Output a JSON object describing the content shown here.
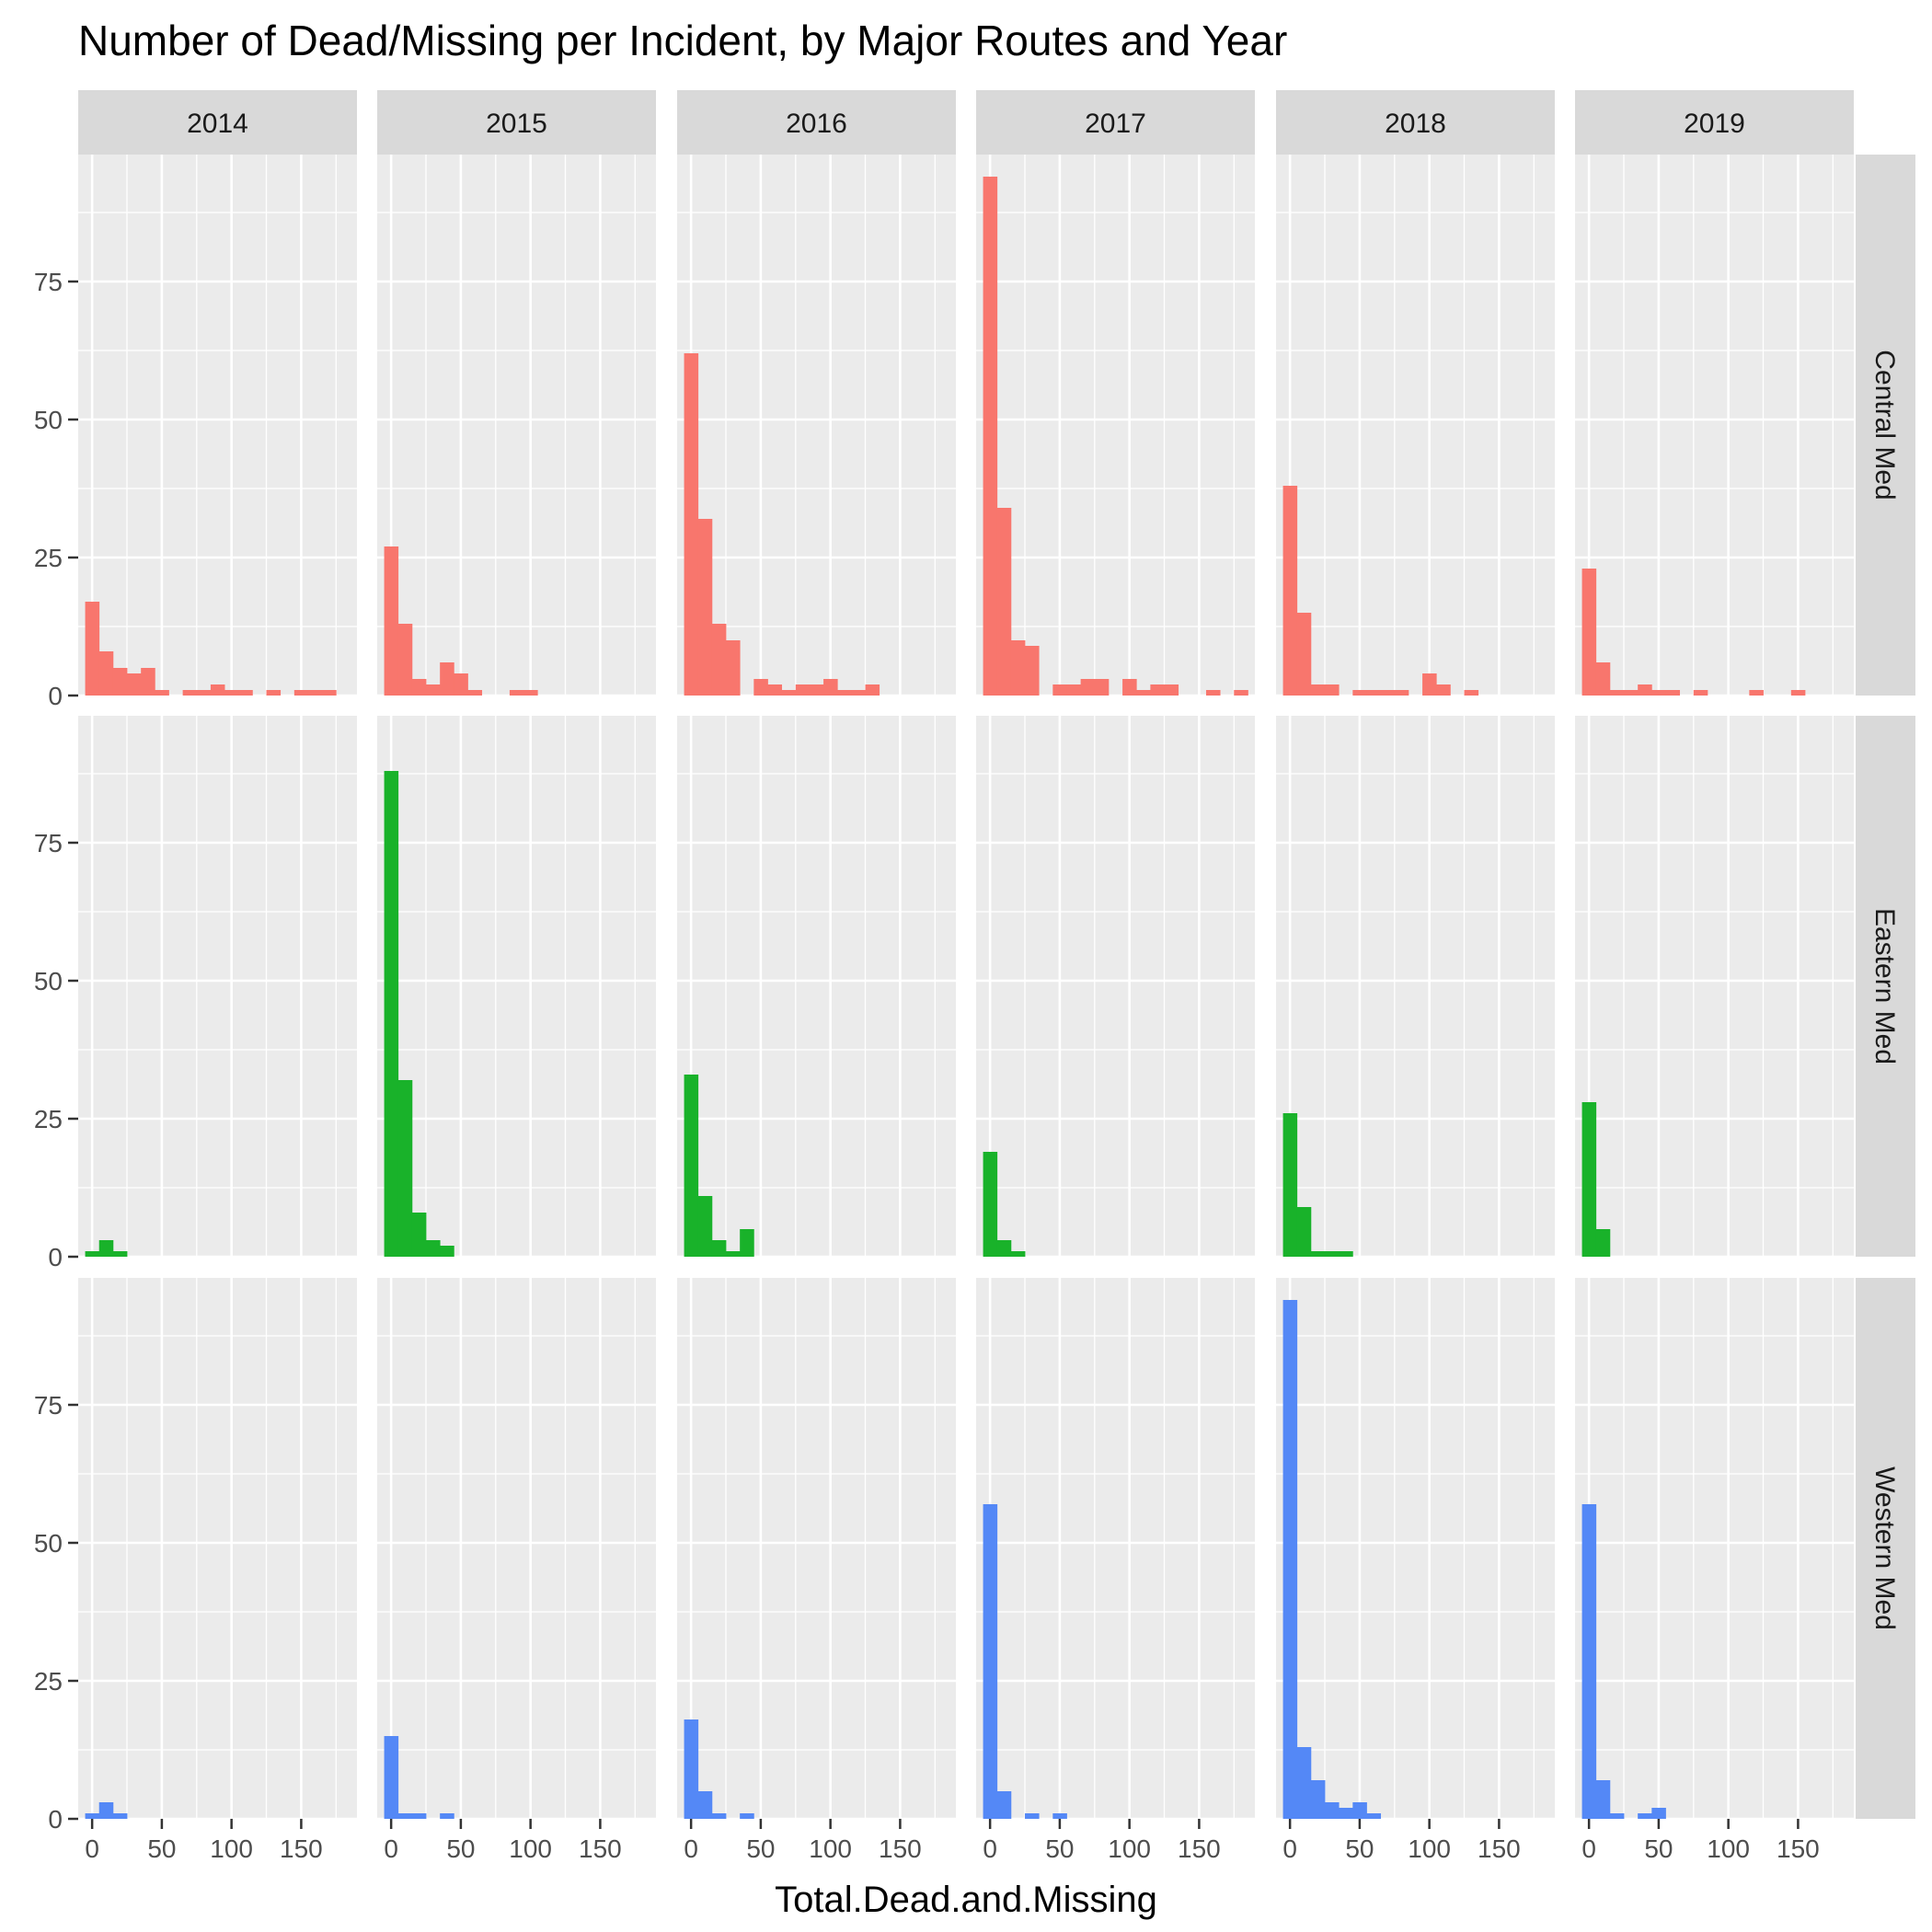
{
  "chart_data": {
    "type": "bar",
    "title": "Number of Dead/Missing per Incident, by Major Routes and Year",
    "xlabel": "Total.Dead.and.Missing",
    "ylabel": "",
    "xlim": [
      -10,
      190
    ],
    "ylim": [
      0,
      98
    ],
    "x_ticks": [
      0,
      50,
      100,
      150
    ],
    "x_tick_labels": [
      "0",
      "50",
      "100",
      "150"
    ],
    "y_ticks": [
      0,
      25,
      50,
      75
    ],
    "y_tick_labels": [
      "0",
      "25",
      "50",
      "75"
    ],
    "bin_width": 10,
    "bin_starts": [
      -5,
      5,
      15,
      25,
      35,
      45,
      55,
      65,
      75,
      85,
      95,
      105,
      115,
      125,
      135,
      145,
      155,
      165,
      175
    ],
    "columns": [
      "2014",
      "2015",
      "2016",
      "2017",
      "2018",
      "2019"
    ],
    "rows": [
      {
        "name": "Central Med",
        "color": "#F8766D",
        "values": {
          "2014": [
            17,
            8,
            5,
            4,
            5,
            1,
            0,
            1,
            1,
            2,
            1,
            1,
            0,
            1,
            0,
            1,
            1,
            1,
            0
          ],
          "2015": [
            27,
            13,
            3,
            2,
            6,
            4,
            1,
            0,
            0,
            1,
            1,
            0,
            0,
            0,
            0,
            0,
            0,
            0,
            0
          ],
          "2016": [
            62,
            32,
            13,
            10,
            0,
            3,
            2,
            1,
            2,
            2,
            3,
            1,
            1,
            2,
            0,
            0,
            0,
            0,
            0
          ],
          "2017": [
            94,
            34,
            10,
            9,
            0,
            2,
            2,
            3,
            3,
            0,
            3,
            1,
            2,
            2,
            0,
            0,
            1,
            0,
            1
          ],
          "2018": [
            38,
            15,
            2,
            2,
            0,
            1,
            1,
            1,
            1,
            0,
            4,
            2,
            0,
            1,
            0,
            0,
            0,
            0,
            0
          ],
          "2019": [
            23,
            6,
            1,
            1,
            2,
            1,
            1,
            0,
            1,
            0,
            0,
            0,
            1,
            0,
            0,
            1,
            0,
            0,
            0
          ]
        }
      },
      {
        "name": "Eastern Med",
        "color": "#19B22A",
        "values": {
          "2014": [
            1,
            3,
            1,
            0,
            0,
            0,
            0,
            0,
            0,
            0,
            0,
            0,
            0,
            0,
            0,
            0,
            0,
            0,
            0
          ],
          "2015": [
            88,
            32,
            8,
            3,
            2,
            0,
            0,
            0,
            0,
            0,
            0,
            0,
            0,
            0,
            0,
            0,
            0,
            0,
            0
          ],
          "2016": [
            33,
            11,
            3,
            1,
            5,
            0,
            0,
            0,
            0,
            0,
            0,
            0,
            0,
            0,
            0,
            0,
            0,
            0,
            0
          ],
          "2017": [
            19,
            3,
            1,
            0,
            0,
            0,
            0,
            0,
            0,
            0,
            0,
            0,
            0,
            0,
            0,
            0,
            0,
            0,
            0
          ],
          "2018": [
            26,
            9,
            1,
            1,
            1,
            0,
            0,
            0,
            0,
            0,
            0,
            0,
            0,
            0,
            0,
            0,
            0,
            0,
            0
          ],
          "2019": [
            28,
            5,
            0,
            0,
            0,
            0,
            0,
            0,
            0,
            0,
            0,
            0,
            0,
            0,
            0,
            0,
            0,
            0,
            0
          ]
        }
      },
      {
        "name": "Western Med",
        "color": "#5488F6",
        "values": {
          "2014": [
            1,
            3,
            1,
            0,
            0,
            0,
            0,
            0,
            0,
            0,
            0,
            0,
            0,
            0,
            0,
            0,
            0,
            0,
            0
          ],
          "2015": [
            15,
            1,
            1,
            0,
            1,
            0,
            0,
            0,
            0,
            0,
            0,
            0,
            0,
            0,
            0,
            0,
            0,
            0,
            0
          ],
          "2016": [
            18,
            5,
            1,
            0,
            1,
            0,
            0,
            0,
            0,
            0,
            0,
            0,
            0,
            0,
            0,
            0,
            0,
            0,
            0
          ],
          "2017": [
            57,
            5,
            0,
            1,
            0,
            1,
            0,
            0,
            0,
            0,
            0,
            0,
            0,
            0,
            0,
            0,
            0,
            0,
            0
          ],
          "2018": [
            94,
            13,
            7,
            3,
            2,
            3,
            1,
            0,
            0,
            0,
            0,
            0,
            0,
            0,
            0,
            0,
            0,
            0,
            0
          ],
          "2019": [
            57,
            7,
            1,
            0,
            1,
            2,
            0,
            0,
            0,
            0,
            0,
            0,
            0,
            0,
            0,
            0,
            0,
            0,
            0
          ]
        }
      }
    ],
    "grid": true,
    "legend": "none"
  }
}
